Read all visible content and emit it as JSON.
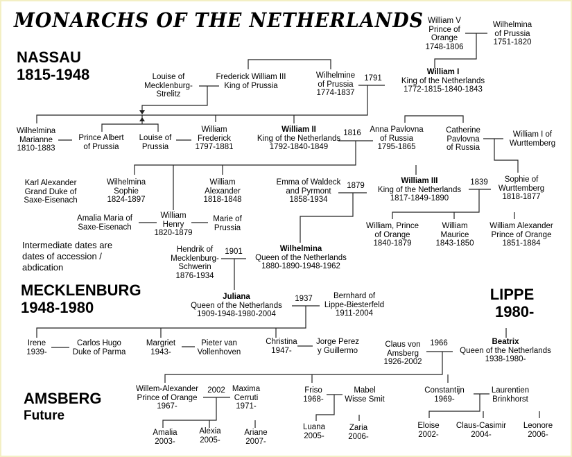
{
  "title": "MONARCHS OF THE NETHERLANDS",
  "houses": {
    "nassau": {
      "name": "NASSAU",
      "years": "1815-1948"
    },
    "mecklenburg": {
      "name": "MECKLENBURG",
      "years": "1948-1980"
    },
    "lippe": {
      "name": "LIPPE",
      "years": "1980-"
    },
    "amsberg": {
      "name": "AMSBERG",
      "years": "Future"
    }
  },
  "note": [
    "Intermediate dates are",
    "dates of accession /",
    "abdication"
  ],
  "marriage_years": {
    "y1791": "1791",
    "y1816": "1816",
    "y1839": "1839",
    "y1879": "1879",
    "y1901": "1901",
    "y1937": "1937",
    "y1966": "1966",
    "y2002": "2002"
  },
  "people": [
    {
      "id": "wv",
      "lines": [
        "William V",
        "Prince of",
        "Orange",
        "1748-1806"
      ]
    },
    {
      "id": "wpr",
      "lines": [
        "Wilhelmina",
        "of Prussia",
        "1751-1820"
      ]
    },
    {
      "id": "louisem",
      "lines": [
        "Louise of",
        "Mecklenburg-",
        "Strelitz"
      ]
    },
    {
      "id": "fw3",
      "lines": [
        "Frederick William III",
        "King of Prussia"
      ]
    },
    {
      "id": "wilhelmine",
      "lines": [
        "Wilhelmine",
        "of Prussia",
        "1774-1837"
      ]
    },
    {
      "id": "w1",
      "bold": "William I",
      "lines": [
        "King of the Netherlands",
        "1772-1815-1840-1843"
      ]
    },
    {
      "id": "marianne",
      "lines": [
        "Wilhelmina",
        "Marianne",
        "1810-1883"
      ]
    },
    {
      "id": "albert",
      "lines": [
        "Prince Albert",
        "of Prussia"
      ]
    },
    {
      "id": "louisep",
      "lines": [
        "Louise of",
        "Prussia"
      ]
    },
    {
      "id": "wfred",
      "lines": [
        "William",
        "Frederick",
        "1797-1881"
      ]
    },
    {
      "id": "w2",
      "bold": "William II",
      "lines": [
        "King of the Netherlands",
        "1792-1840-1849"
      ]
    },
    {
      "id": "anna",
      "lines": [
        "Anna Pavlovna",
        "of Russia",
        "1795-1865"
      ]
    },
    {
      "id": "catherine",
      "lines": [
        "Catherine",
        "Pavlovna",
        "of Russia"
      ]
    },
    {
      "id": "w1wurt",
      "lines": [
        "William I of",
        "Wurttemberg"
      ]
    },
    {
      "id": "karl",
      "lines": [
        "Karl Alexander",
        "Grand Duke of",
        "Saxe-Eisenach"
      ]
    },
    {
      "id": "wsophie",
      "lines": [
        "Wilhelmina",
        "Sophie",
        "1824-1897"
      ]
    },
    {
      "id": "walex",
      "lines": [
        "William",
        "Alexander",
        "1818-1848"
      ]
    },
    {
      "id": "emma",
      "lines": [
        "Emma of Waldeck",
        "and Pyrmont",
        "1858-1934"
      ]
    },
    {
      "id": "w3",
      "bold": "William III",
      "lines": [
        "King of the Netherlands",
        "1817-1849-1890"
      ]
    },
    {
      "id": "sophie",
      "lines": [
        "Sophie of",
        "Wurttemberg",
        "1818-1877"
      ]
    },
    {
      "id": "amaliam",
      "lines": [
        "Amalia Maria of",
        "Saxe-Eisenach"
      ]
    },
    {
      "id": "whenry",
      "lines": [
        "William",
        "Henry",
        "1820-1879"
      ]
    },
    {
      "id": "marie",
      "lines": [
        "Marie of",
        "Prussia"
      ]
    },
    {
      "id": "wpo",
      "lines": [
        "William, Prince",
        "of Orange",
        "1840-1879"
      ]
    },
    {
      "id": "wmaurice",
      "lines": [
        "William",
        "Maurice",
        "1843-1850"
      ]
    },
    {
      "id": "walexpo",
      "lines": [
        "William Alexander",
        "Prince of Orange",
        "1851-1884"
      ]
    },
    {
      "id": "hendrik",
      "lines": [
        "Hendrik of",
        "Mecklenburg-",
        "Schwerin",
        "1876-1934"
      ]
    },
    {
      "id": "wilhelmina",
      "bold": "Wilhelmina",
      "lines": [
        "Queen of the Netherlands",
        "1880-1890-1948-1962"
      ]
    },
    {
      "id": "juliana",
      "bold": "Juliana",
      "lines": [
        "Queen of the Netherlands",
        "1909-1948-1980-2004"
      ]
    },
    {
      "id": "bernhard",
      "lines": [
        "Bernhard of",
        "Lippe-Biesterfeld",
        "1911-2004"
      ]
    },
    {
      "id": "irene",
      "lines": [
        "Irene",
        "1939-"
      ]
    },
    {
      "id": "carlos",
      "lines": [
        "Carlos Hugo",
        "Duke of Parma"
      ]
    },
    {
      "id": "margriet",
      "lines": [
        "Margriet",
        "1943-"
      ]
    },
    {
      "id": "pieter",
      "lines": [
        "Pieter van",
        "Vollenhoven"
      ]
    },
    {
      "id": "christina",
      "lines": [
        "Christina",
        "1947-"
      ]
    },
    {
      "id": "jorge",
      "lines": [
        "Jorge Perez",
        "y Guillermo"
      ]
    },
    {
      "id": "claus",
      "lines": [
        "Claus von",
        "Amsberg",
        "1926-2002"
      ]
    },
    {
      "id": "beatrix",
      "bold": "Beatrix",
      "lines": [
        "Queen of the Netherlands",
        "1938-1980-"
      ]
    },
    {
      "id": "wa",
      "lines": [
        "Willem-Alexander",
        "Prince of Orange",
        "1967-"
      ]
    },
    {
      "id": "maxima",
      "lines": [
        "Maxima",
        "Cerruti",
        "1971-"
      ]
    },
    {
      "id": "friso",
      "lines": [
        "Friso",
        "1968-"
      ]
    },
    {
      "id": "mabel",
      "lines": [
        "Mabel",
        "Wisse Smit"
      ]
    },
    {
      "id": "constantijn",
      "lines": [
        "Constantijn",
        "1969-"
      ]
    },
    {
      "id": "laurentien",
      "lines": [
        "Laurentien",
        "Brinkhorst"
      ]
    },
    {
      "id": "amalia",
      "lines": [
        "Amalia",
        "2003-"
      ]
    },
    {
      "id": "alexia",
      "lines": [
        "Alexia",
        "2005-"
      ]
    },
    {
      "id": "ariane",
      "lines": [
        "Ariane",
        "2007-"
      ]
    },
    {
      "id": "luana",
      "lines": [
        "Luana",
        "2005-"
      ]
    },
    {
      "id": "zaria",
      "lines": [
        "Zaria",
        "2006-"
      ]
    },
    {
      "id": "eloise",
      "lines": [
        "Eloise",
        "2002-"
      ]
    },
    {
      "id": "clauscasimir",
      "lines": [
        "Claus-Casimir",
        "2004-"
      ]
    },
    {
      "id": "leonore",
      "lines": [
        "Leonore",
        "2006-"
      ]
    }
  ]
}
